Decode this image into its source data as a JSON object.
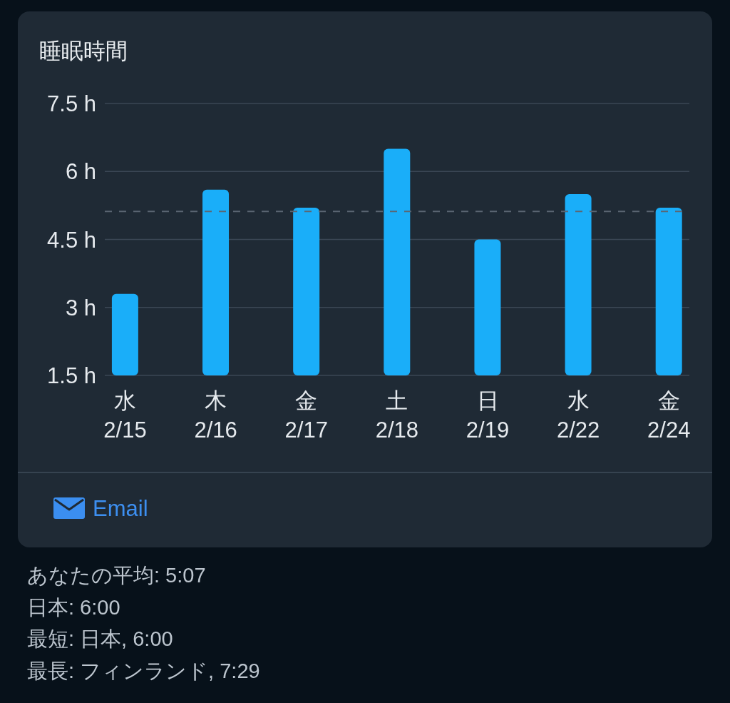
{
  "chart_data": {
    "type": "bar",
    "title": "睡眠時間",
    "categories": [
      "水\n2/15",
      "木\n2/16",
      "金\n2/17",
      "土\n2/18",
      "日\n2/19",
      "水\n2/22",
      "金\n2/24"
    ],
    "values": [
      3.3,
      5.6,
      5.2,
      6.5,
      4.5,
      5.5,
      5.2
    ],
    "color": "#1aaef9",
    "ylim": [
      1.5,
      7.5
    ],
    "yticks": [
      {
        "value": 1.5,
        "label": "1.5 h"
      },
      {
        "value": 3,
        "label": "3 h"
      },
      {
        "value": 4.5,
        "label": "4.5 h"
      },
      {
        "value": 6,
        "label": "6 h"
      },
      {
        "value": 7.5,
        "label": "7.5 h"
      }
    ],
    "grid": "y",
    "ref_lines": [
      {
        "axis": "y",
        "value": 5.12,
        "color": "#5b6673",
        "line_style": "dashed"
      }
    ],
    "annotations": [
      "Email",
      "あなたの平均: 5:07",
      "日本: 6:00",
      "最短: 日本, 6:00",
      "最長: フィンランド, 7:29"
    ]
  }
}
